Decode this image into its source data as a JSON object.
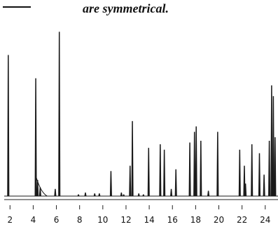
{
  "caption": {
    "text": "are symmetrical."
  },
  "chart_data": {
    "type": "line",
    "title": "",
    "xlabel": "",
    "ylabel": "",
    "grid": false,
    "xlim": [
      1.5,
      25.1
    ],
    "ylim": [
      0,
      100
    ],
    "x_ticks": [
      2,
      4,
      6,
      8,
      10,
      12,
      14,
      16,
      18,
      20,
      22,
      24
    ],
    "x_tick_labels": [
      "2",
      "4",
      "6",
      "8",
      "10",
      "12",
      "14",
      "16",
      "18",
      "20",
      "22",
      "24"
    ],
    "baseline": 1.2,
    "peaks": [
      {
        "x": 1.85,
        "y": 80
      },
      {
        "x": 4.22,
        "y": 67
      },
      {
        "x": 4.38,
        "y": 10
      },
      {
        "x": 4.6,
        "y": 6
      },
      {
        "x": 5.9,
        "y": 5
      },
      {
        "x": 6.25,
        "y": 93
      },
      {
        "x": 7.9,
        "y": 2
      },
      {
        "x": 8.5,
        "y": 3
      },
      {
        "x": 9.3,
        "y": 2.5
      },
      {
        "x": 9.7,
        "y": 2.5
      },
      {
        "x": 10.7,
        "y": 15
      },
      {
        "x": 11.6,
        "y": 3
      },
      {
        "x": 11.8,
        "y": 2
      },
      {
        "x": 12.35,
        "y": 18
      },
      {
        "x": 12.55,
        "y": 43
      },
      {
        "x": 13.1,
        "y": 2.5
      },
      {
        "x": 13.5,
        "y": 2
      },
      {
        "x": 13.95,
        "y": 28
      },
      {
        "x": 14.95,
        "y": 30
      },
      {
        "x": 15.3,
        "y": 27
      },
      {
        "x": 15.9,
        "y": 5
      },
      {
        "x": 16.3,
        "y": 16
      },
      {
        "x": 17.5,
        "y": 31
      },
      {
        "x": 17.9,
        "y": 37
      },
      {
        "x": 18.05,
        "y": 40
      },
      {
        "x": 18.45,
        "y": 32
      },
      {
        "x": 19.1,
        "y": 4
      },
      {
        "x": 19.9,
        "y": 37
      },
      {
        "x": 21.8,
        "y": 27
      },
      {
        "x": 22.2,
        "y": 18
      },
      {
        "x": 22.3,
        "y": 8
      },
      {
        "x": 22.85,
        "y": 30
      },
      {
        "x": 23.5,
        "y": 25
      },
      {
        "x": 23.9,
        "y": 13
      },
      {
        "x": 24.35,
        "y": 32
      },
      {
        "x": 24.55,
        "y": 63
      },
      {
        "x": 24.7,
        "y": 57
      },
      {
        "x": 24.85,
        "y": 34
      }
    ]
  }
}
